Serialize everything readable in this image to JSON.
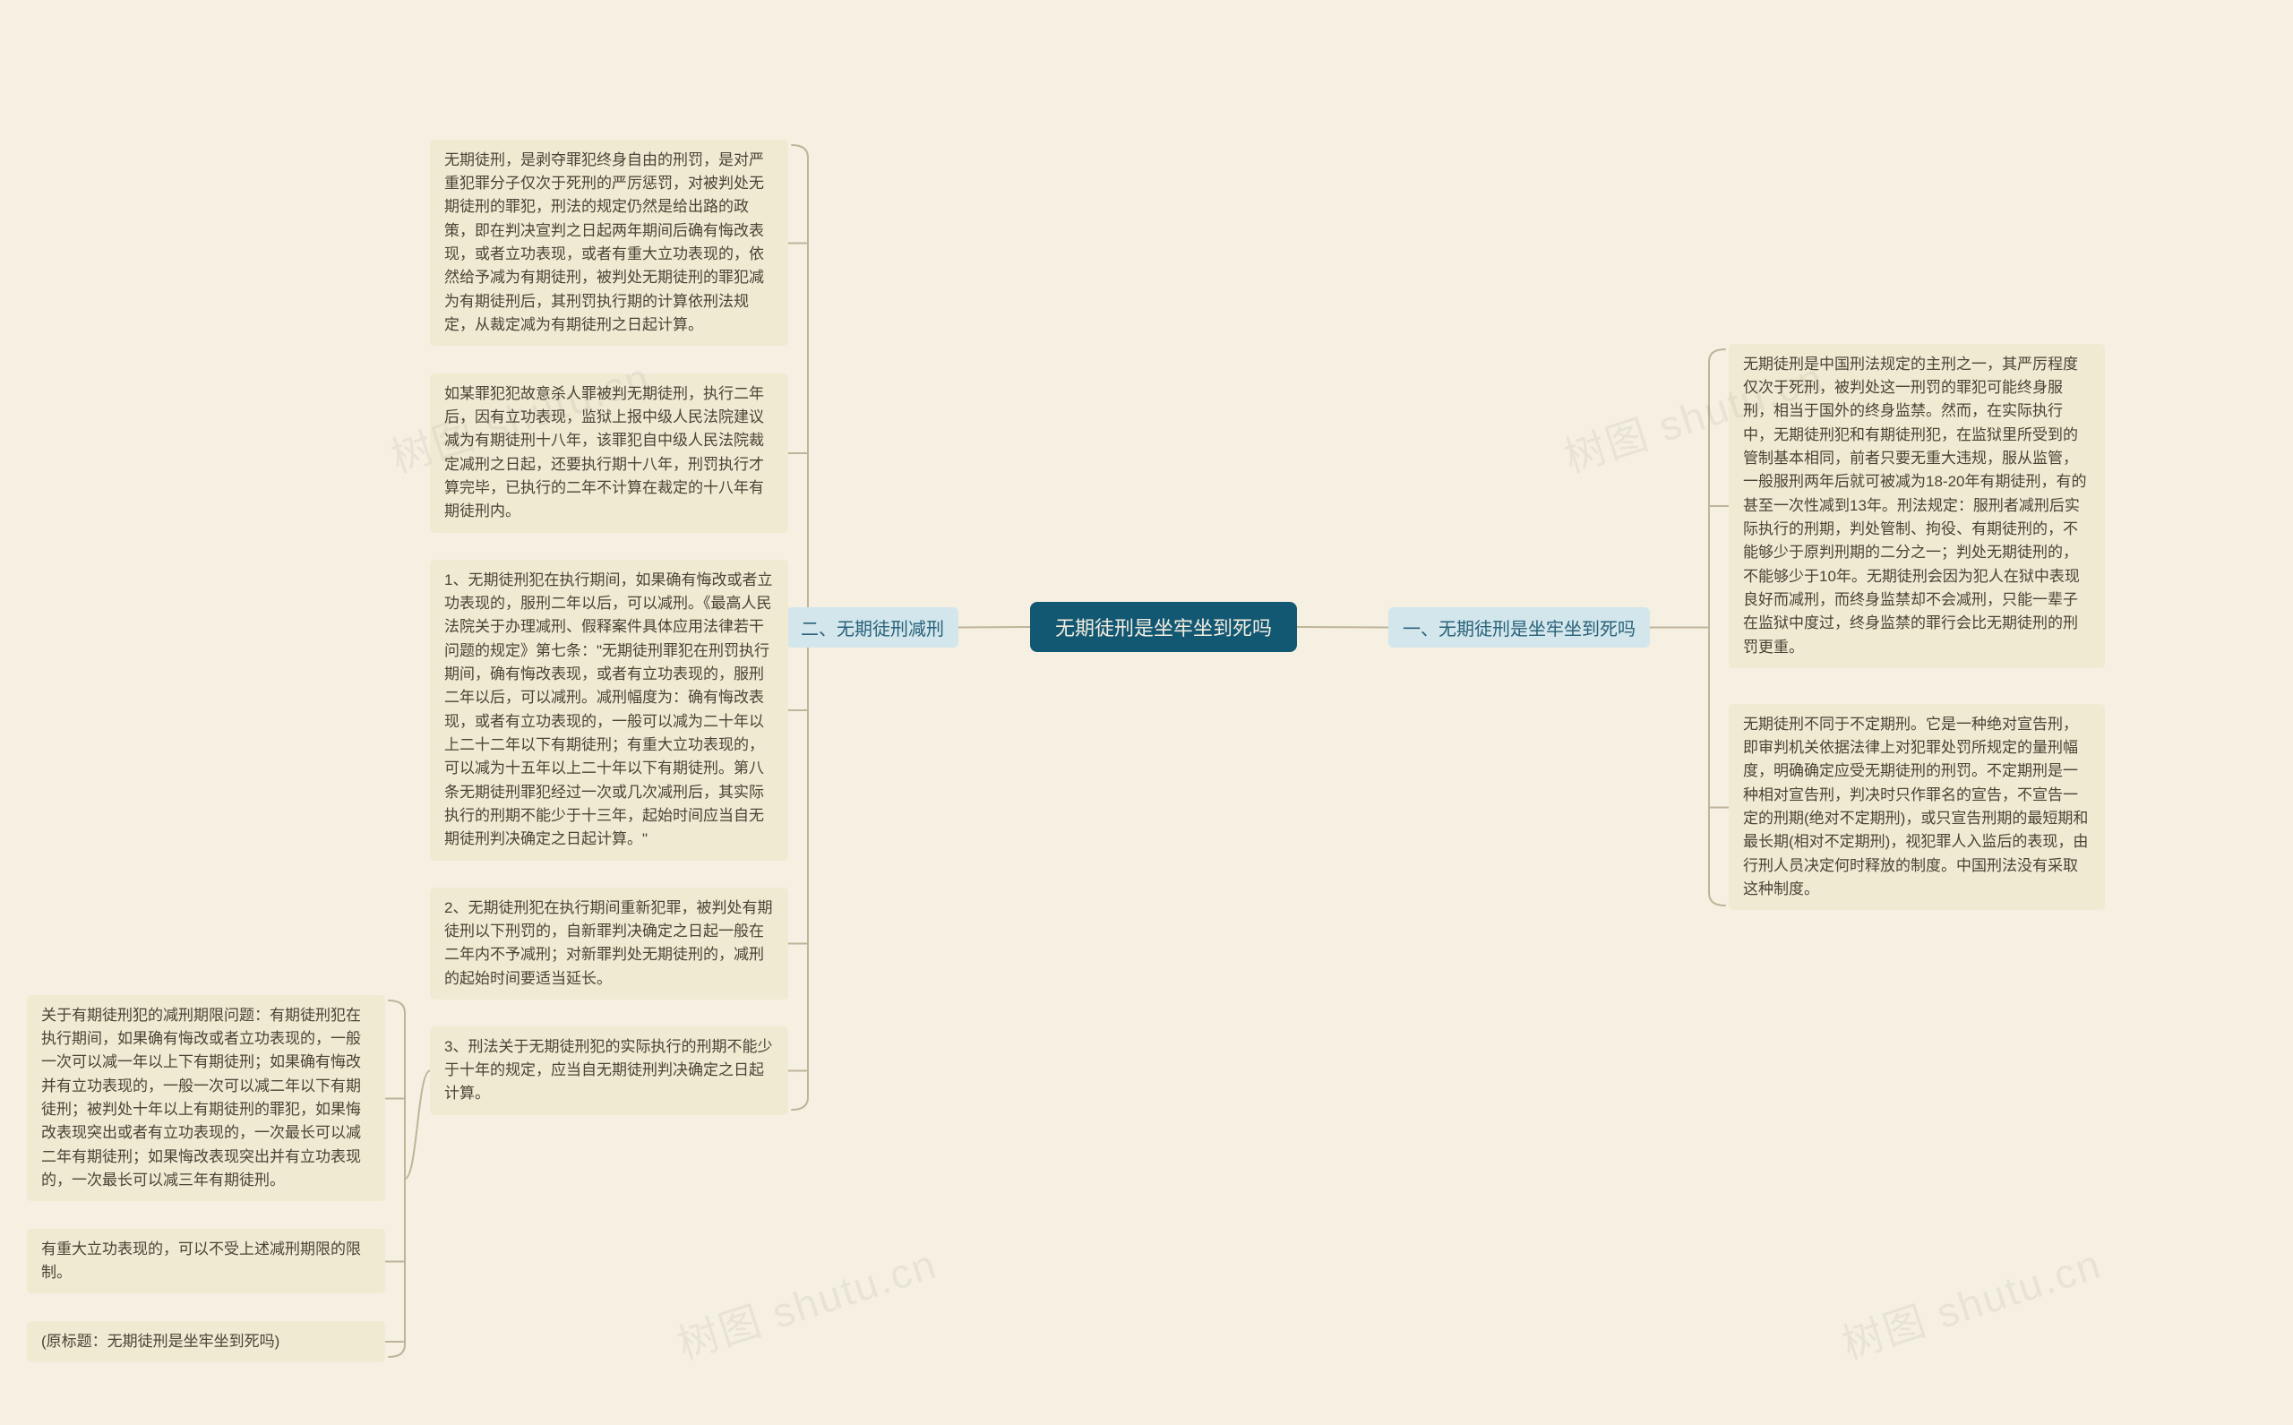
{
  "diagram": {
    "type": "mindmap",
    "background_color": "#f5f0e1",
    "line_color": "#bfb49a",
    "line_width": 2,
    "root_bg": "#135872",
    "root_fg": "#f2ece0",
    "branch_bg": "#d2e6ec",
    "branch_fg": "#2a627a",
    "leaf_bg": "#f0ead2",
    "leaf_fg": "#4a4437",
    "root": "无期徒刑是坐牢坐到死吗",
    "right_branch": {
      "label": "一、无期徒刑是坐牢坐到死吗",
      "leaves": [
        "无期徒刑是中国刑法规定的主刑之一，其严厉程度仅次于死刑，被判处这一刑罚的罪犯可能终身服刑，相当于国外的终身监禁。然而，在实际执行中，无期徒刑犯和有期徒刑犯，在监狱里所受到的管制基本相同，前者只要无重大违规，服从监管，一般服刑两年后就可被减为18-20年有期徒刑，有的甚至一次性减到13年。刑法规定：服刑者减刑后实际执行的刑期，判处管制、拘役、有期徒刑的，不能够少于原判刑期的二分之一；判处无期徒刑的，不能够少于10年。无期徒刑会因为犯人在狱中表现良好而减刑，而终身监禁却不会减刑，只能一辈子在监狱中度过，终身监禁的罪行会比无期徒刑的刑罚更重。",
        "无期徒刑不同于不定期刑。它是一种绝对宣告刑，即审判机关依据法律上对犯罪处罚所规定的量刑幅度，明确确定应受无期徒刑的刑罚。不定期刑是一种相对宣告刑，判决时只作罪名的宣告，不宣告一定的刑期(绝对不定期刑)，或只宣告刑期的最短期和最长期(相对不定期刑)，视犯罪人入监后的表现，由行刑人员决定何时释放的制度。中国刑法没有采取这种制度。"
      ]
    },
    "left_branch": {
      "label": "二、无期徒刑减刑",
      "leaves": [
        "无期徒刑，是剥夺罪犯终身自由的刑罚，是对严重犯罪分子仅次于死刑的严厉惩罚，对被判处无期徒刑的罪犯，刑法的规定仍然是给出路的政策，即在判决宣判之日起两年期间后确有悔改表现，或者立功表现，或者有重大立功表现的，依然给予减为有期徒刑，被判处无期徒刑的罪犯减为有期徒刑后，其刑罚执行期的计算依刑法规定，从裁定减为有期徒刑之日起计算。",
        "如某罪犯犯故意杀人罪被判无期徒刑，执行二年后，因有立功表现，监狱上报中级人民法院建议减为有期徒刑十八年，该罪犯自中级人民法院裁定减刑之日起，还要执行期十八年，刑罚执行才算完毕，已执行的二年不计算在裁定的十八年有期徒刑内。",
        "1、无期徒刑犯在执行期间，如果确有悔改或者立功表现的，服刑二年以后，可以减刑。《最高人民法院关于办理减刑、假释案件具体应用法律若干问题的规定》第七条：\"无期徒刑罪犯在刑罚执行期间，确有悔改表现，或者有立功表现的，服刑二年以后，可以减刑。减刑幅度为：确有悔改表现，或者有立功表现的，一般可以减为二十年以上二十二年以下有期徒刑；有重大立功表现的，可以减为十五年以上二十年以下有期徒刑。第八条无期徒刑罪犯经过一次或几次减刑后，其实际执行的刑期不能少于十三年，起始时间应当自无期徒刑判决确定之日起计算。\"",
        "2、无期徒刑犯在执行期间重新犯罪，被判处有期徒刑以下刑罚的，自新罪判决确定之日起一般在二年内不予减刑；对新罪判处无期徒刑的，减刑的起始时间要适当延长。",
        "3、刑法关于无期徒刑犯的实际执行的刑期不能少于十年的规定，应当自无期徒刑判决确定之日起计算。"
      ],
      "sub_leaves": [
        "关于有期徒刑犯的减刑期限问题：有期徒刑犯在执行期间，如果确有悔改或者立功表现的，一般一次可以减一年以上下有期徒刑；如果确有悔改并有立功表现的，一般一次可以减二年以下有期徒刑；被判处十年以上有期徒刑的罪犯，如果悔改表现突出或者有立功表现的，一次最长可以减二年有期徒刑；如果悔改表现突出并有立功表现的，一次最长可以减三年有期徒刑。",
        "有重大立功表现的，可以不受上述减刑期限的限制。",
        "(原标题：无期徒刑是坐牢坐到死吗)"
      ]
    }
  },
  "watermark_text": "树图 shutu.cn"
}
